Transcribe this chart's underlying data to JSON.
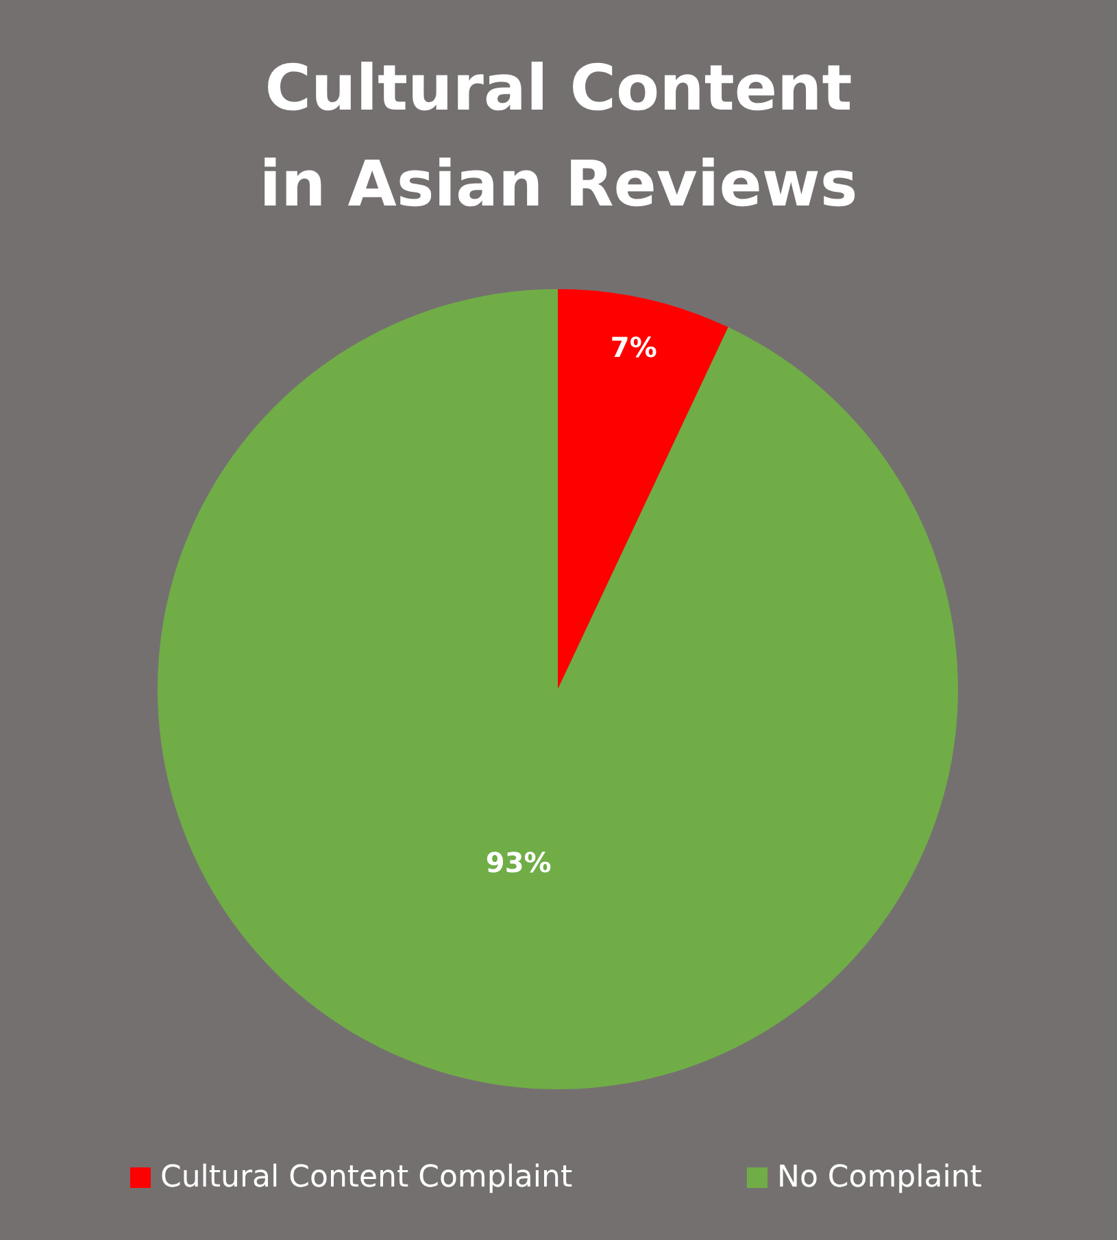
{
  "chart_data": {
    "type": "pie",
    "title": "Cultural Content\nin Asian Reviews",
    "categories": [
      "Cultural Content Complaint",
      "No Complaint"
    ],
    "values": [
      7,
      93
    ],
    "colors": [
      "#ff0000",
      "#70ad47"
    ],
    "value_labels": [
      "7%",
      "93%"
    ],
    "legend": "bottom"
  }
}
